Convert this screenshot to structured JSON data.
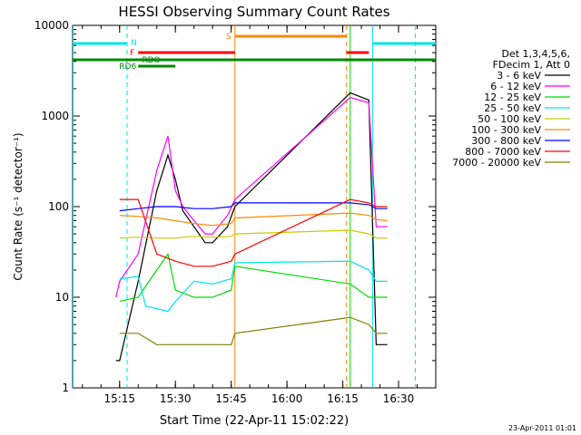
{
  "chart_data": {
    "type": "line",
    "title": "HESSI Observing Summary Count Rates",
    "xlabel": "Start Time (22-Apr-11 15:02:22)",
    "ylabel": "Count Rate (s⁻¹ detector⁻¹)",
    "y_scale": "log",
    "xlim": [
      "15:02:22",
      "16:40:00"
    ],
    "ylim": [
      1,
      10000
    ],
    "x_ticks": [
      "15:15",
      "15:30",
      "15:45",
      "16:00",
      "16:15",
      "16:30"
    ],
    "y_ticks": [
      "1",
      "10",
      "100",
      "1000",
      "10000"
    ],
    "legend": {
      "header": [
        "Det 1,3,4,5,6,",
        "FDecim 1, Att 0"
      ],
      "placement": "right"
    },
    "series": [
      {
        "name": "3 - 6 keV",
        "color": "#000000",
        "x": [
          "15:14:00",
          "15:15:00",
          "15:20:00",
          "15:25:00",
          "15:28:00",
          "15:30:00",
          "15:32:00",
          "15:35:00",
          "15:38:00",
          "15:40:00",
          "15:44:00",
          "15:46:00",
          "16:17:00",
          "16:22:00",
          "16:24:00",
          "16:27:00"
        ],
        "y": [
          2,
          2,
          15,
          150,
          370,
          200,
          90,
          60,
          40,
          40,
          60,
          100,
          1800,
          1500,
          3,
          3
        ]
      },
      {
        "name": "6 - 12 keV",
        "color": "#ff00ff",
        "x": [
          "15:14:00",
          "15:15:00",
          "15:20:00",
          "15:25:00",
          "15:28:00",
          "15:30:00",
          "15:32:00",
          "15:35:00",
          "15:38:00",
          "15:40:00",
          "15:44:00",
          "15:46:00",
          "16:17:00",
          "16:22:00",
          "16:24:00",
          "16:27:00"
        ],
        "y": [
          10,
          15,
          30,
          250,
          600,
          150,
          100,
          70,
          50,
          50,
          80,
          120,
          1600,
          1400,
          60,
          60
        ]
      },
      {
        "name": "12 - 25 keV",
        "color": "#00dd00",
        "x": [
          "15:15:00",
          "15:20:00",
          "15:25:00",
          "15:28:00",
          "15:30:00",
          "15:35:00",
          "15:40:00",
          "15:45:00",
          "15:46:00",
          "16:17:00",
          "16:22:00",
          "16:24:00",
          "16:27:00"
        ],
        "y": [
          9,
          10,
          20,
          30,
          12,
          10,
          10,
          12,
          22,
          14,
          10,
          10,
          10
        ]
      },
      {
        "name": "25 - 50 keV",
        "color": "#00e5e5",
        "x": [
          "15:15:00",
          "15:20:00",
          "15:22:00",
          "15:28:00",
          "15:30:00",
          "15:35:00",
          "15:40:00",
          "15:45:00",
          "15:46:00",
          "16:17:00",
          "16:22:00",
          "16:24:00",
          "16:27:00"
        ],
        "y": [
          16,
          17,
          8,
          7,
          9,
          15,
          14,
          16,
          24,
          25,
          20,
          15,
          15
        ]
      },
      {
        "name": "50 - 100 keV",
        "color": "#cccc00",
        "x": [
          "15:15:00",
          "15:20:00",
          "15:25:00",
          "15:30:00",
          "15:35:00",
          "15:40:00",
          "15:45:00",
          "15:46:00",
          "16:17:00",
          "16:22:00",
          "16:24:00",
          "16:27:00"
        ],
        "y": [
          45,
          46,
          45,
          45,
          47,
          46,
          47,
          50,
          55,
          50,
          45,
          45
        ]
      },
      {
        "name": "100 - 300 keV",
        "color": "#ff8800",
        "x": [
          "15:15:00",
          "15:20:00",
          "15:25:00",
          "15:30:00",
          "15:35:00",
          "15:40:00",
          "15:45:00",
          "15:46:00",
          "16:17:00",
          "16:22:00",
          "16:24:00",
          "16:27:00"
        ],
        "y": [
          80,
          78,
          75,
          70,
          65,
          62,
          65,
          75,
          85,
          80,
          72,
          70
        ]
      },
      {
        "name": "300 - 800 keV",
        "color": "#0000ff",
        "x": [
          "15:15:00",
          "15:20:00",
          "15:25:00",
          "15:30:00",
          "15:35:00",
          "15:40:00",
          "15:45:00",
          "15:46:00",
          "16:17:00",
          "16:22:00",
          "16:24:00",
          "16:27:00"
        ],
        "y": [
          90,
          95,
          100,
          100,
          95,
          95,
          100,
          110,
          110,
          105,
          95,
          95
        ]
      },
      {
        "name": "800 - 7000 keV",
        "color": "#ff0000",
        "x": [
          "15:15:00",
          "15:20:00",
          "15:25:00",
          "15:30:00",
          "15:35:00",
          "15:40:00",
          "15:45:00",
          "15:46:00",
          "16:17:00",
          "16:22:00",
          "16:24:00",
          "16:27:00"
        ],
        "y": [
          120,
          120,
          30,
          25,
          22,
          22,
          25,
          30,
          120,
          110,
          100,
          100
        ]
      },
      {
        "name": "7000 - 20000 keV",
        "color": "#808000",
        "x": [
          "15:15:00",
          "15:20:00",
          "15:25:00",
          "15:30:00",
          "15:35:00",
          "15:40:00",
          "15:45:00",
          "15:46:00",
          "16:17:00",
          "16:22:00",
          "16:24:00",
          "16:27:00"
        ],
        "y": [
          4,
          4,
          3,
          3,
          3,
          3,
          3,
          4,
          6,
          5,
          4,
          4
        ]
      }
    ],
    "flag_bars": [
      {
        "label": "N",
        "color": "#00e5e5"
      },
      {
        "label": "F",
        "color": "#ff0000"
      },
      {
        "label": "S",
        "color": "#ff8800"
      },
      {
        "label": "RDO",
        "color": "#008800"
      },
      {
        "label": "RD6",
        "color": "#008800"
      }
    ],
    "footer": "23-Apr-2011 01:01"
  }
}
